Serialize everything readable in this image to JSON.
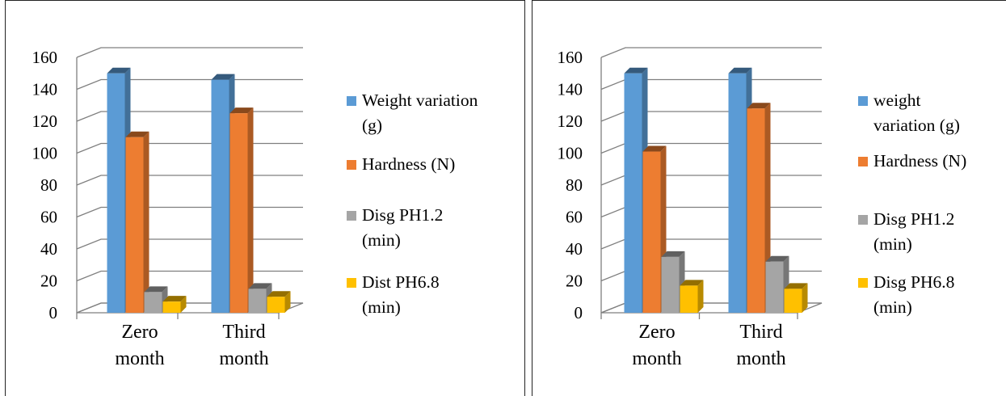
{
  "chart_data": [
    {
      "type": "bar",
      "categories": [
        "Zero month",
        "Third month"
      ],
      "category_lines": [
        [
          "Zero",
          "month"
        ],
        [
          "Third",
          "month"
        ]
      ],
      "ylim": [
        0,
        160
      ],
      "yticks": [
        "0",
        "20",
        "40",
        "60",
        "80",
        "100",
        "120",
        "140",
        "160"
      ],
      "grid": true,
      "legend_position": "right",
      "series": [
        {
          "name": "Weight variation (g)",
          "name_lines": [
            "Weight variation",
            "(g)"
          ],
          "color": "#5B9BD5",
          "values": [
            150,
            146
          ]
        },
        {
          "name": "Hardness (N)",
          "name_lines": [
            "Hardness (N)"
          ],
          "color": "#ED7D31",
          "values": [
            110,
            125
          ]
        },
        {
          "name": "Disg PH1.2 (min)",
          "name_lines": [
            "Disg PH1.2",
            "(min)"
          ],
          "color": "#A5A5A5",
          "values": [
            13,
            15
          ]
        },
        {
          "name": "Dist PH6.8 (min)",
          "name_lines": [
            "Dist PH6.8",
            "(min)"
          ],
          "color": "#FFC000",
          "values": [
            7,
            10
          ]
        }
      ]
    },
    {
      "type": "bar",
      "categories": [
        "Zero month",
        "Third month"
      ],
      "category_lines": [
        [
          "Zero",
          "month"
        ],
        [
          "Third",
          "month"
        ]
      ],
      "ylim": [
        0,
        160
      ],
      "yticks": [
        "0",
        "20",
        "40",
        "60",
        "80",
        "100",
        "120",
        "140",
        "160"
      ],
      "grid": true,
      "legend_position": "right",
      "series": [
        {
          "name": "weight variation (g)",
          "name_lines": [
            "weight",
            "variation (g)"
          ],
          "color": "#5B9BD5",
          "values": [
            150,
            150
          ]
        },
        {
          "name": "Hardness (N)",
          "name_lines": [
            "Hardness (N)"
          ],
          "color": "#ED7D31",
          "values": [
            101,
            128
          ]
        },
        {
          "name": "Disg PH1.2 (min)",
          "name_lines": [
            "Disg PH1.2",
            "(min)"
          ],
          "color": "#A5A5A5",
          "values": [
            35,
            32
          ]
        },
        {
          "name": "Disg PH6.8 (min)",
          "name_lines": [
            "Disg PH6.8",
            "(min)"
          ],
          "color": "#FFC000",
          "values": [
            17,
            15
          ]
        }
      ]
    }
  ]
}
